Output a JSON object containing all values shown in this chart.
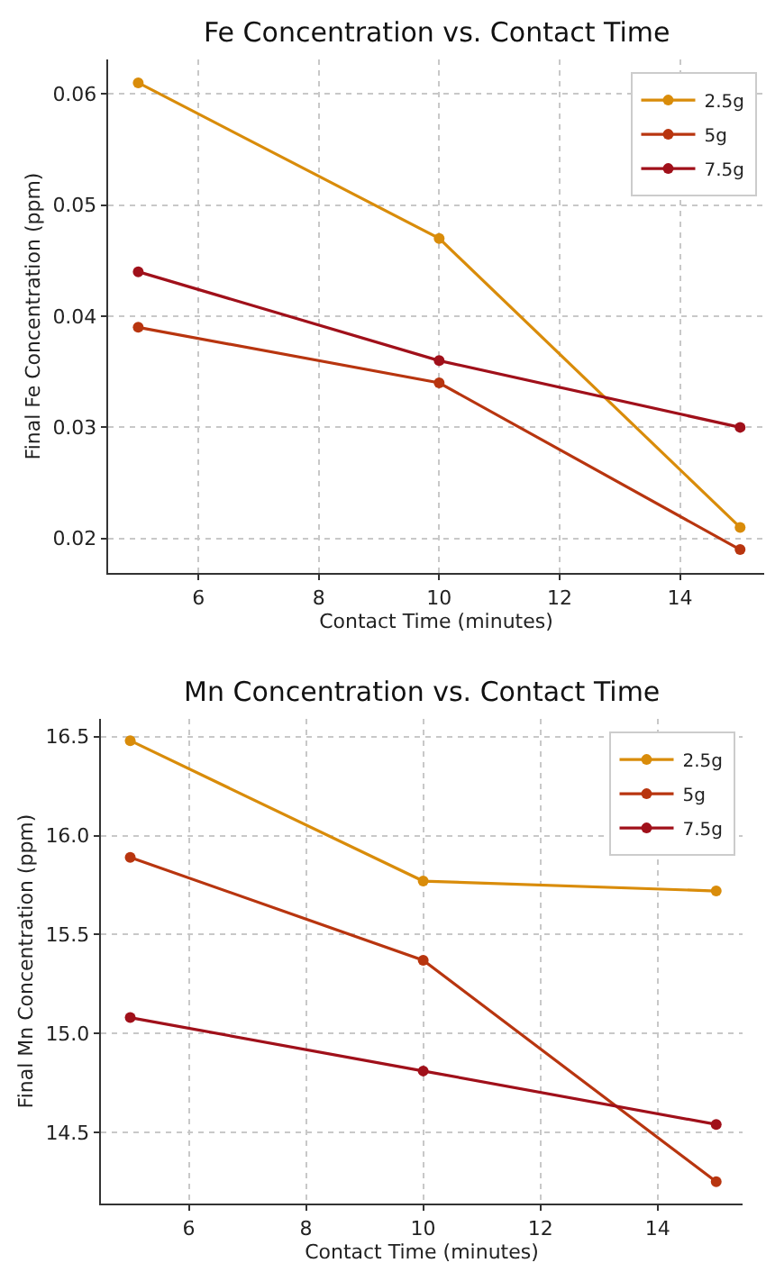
{
  "chart_data": [
    {
      "type": "line",
      "title": "Fe Concentration vs. Contact Time",
      "xlabel": "Contact Time (minutes)",
      "ylabel": "Final Fe Concentration (ppm)",
      "x": [
        5,
        10,
        15
      ],
      "series": [
        {
          "name": "2.5g",
          "color": "#d98c0a",
          "values": [
            0.061,
            0.047,
            0.021
          ]
        },
        {
          "name": "5g",
          "color": "#b8350f",
          "values": [
            0.039,
            0.034,
            0.019
          ]
        },
        {
          "name": "7.5g",
          "color": "#a0101a",
          "values": [
            0.044,
            0.036,
            0.03
          ]
        }
      ],
      "xlim": [
        4.5,
        15.4
      ],
      "xticks": [
        6,
        8,
        10,
        12,
        14
      ],
      "ylim": [
        0.0169,
        0.0631
      ],
      "yticks": [
        {
          "value": 0.02,
          "label": "0.02"
        },
        {
          "value": 0.03,
          "label": "0.03"
        },
        {
          "value": 0.04,
          "label": "0.04"
        },
        {
          "value": 0.05,
          "label": "0.05"
        },
        {
          "value": 0.06,
          "label": "0.06"
        }
      ],
      "grid": true,
      "legend": "top right",
      "marker": "circle",
      "line_style": "solid"
    },
    {
      "type": "line",
      "title": "Mn Concentration vs. Contact Time",
      "xlabel": "Contact Time (minutes)",
      "ylabel": "Final Mn Concentration (ppm)",
      "x": [
        5,
        10,
        15
      ],
      "series": [
        {
          "name": "2.5g",
          "color": "#d98c0a",
          "values": [
            16.48,
            15.77,
            15.72
          ]
        },
        {
          "name": "5g",
          "color": "#b8350f",
          "values": [
            15.89,
            15.37,
            14.25
          ]
        },
        {
          "name": "7.5g",
          "color": "#a0101a",
          "values": [
            15.08,
            14.81,
            14.54
          ]
        }
      ],
      "xlim": [
        4.5,
        15.45
      ],
      "xticks": [
        6,
        8,
        10,
        12,
        14
      ],
      "ylim": [
        14.14,
        16.59
      ],
      "yticks": [
        {
          "value": 14.5,
          "label": "14.5"
        },
        {
          "value": 15.0,
          "label": "15.0"
        },
        {
          "value": 15.5,
          "label": "15.5"
        },
        {
          "value": 16.0,
          "label": "16.0"
        },
        {
          "value": 16.5,
          "label": "16.5"
        }
      ],
      "grid": true,
      "legend": "top right",
      "marker": "circle",
      "line_style": "solid"
    }
  ]
}
